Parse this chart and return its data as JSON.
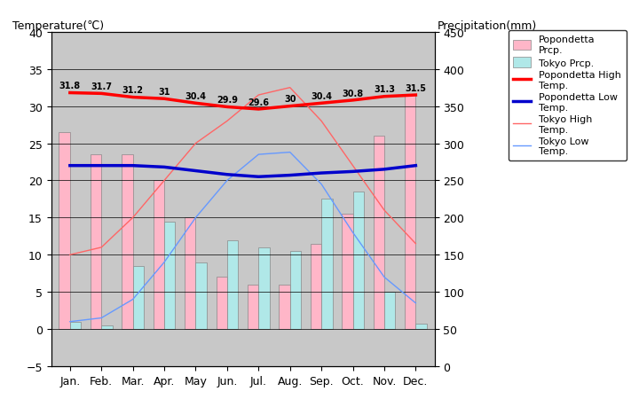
{
  "months": [
    "Jan.",
    "Feb.",
    "Mar.",
    "Apr.",
    "May",
    "Jun.",
    "Jul.",
    "Aug.",
    "Sep.",
    "Oct.",
    "Nov.",
    "Dec."
  ],
  "popondetta_precip": [
    26.5,
    23.5,
    23.5,
    20.0,
    15.0,
    7.0,
    6.0,
    6.0,
    11.5,
    15.5,
    26.0,
    31.5
  ],
  "tokyo_precip": [
    1.0,
    0.5,
    8.5,
    14.5,
    9.0,
    12.0,
    11.0,
    10.5,
    17.5,
    18.5,
    5.0,
    0.7
  ],
  "popondetta_high": [
    31.8,
    31.7,
    31.2,
    31.0,
    30.4,
    29.9,
    29.6,
    30.0,
    30.4,
    30.8,
    31.3,
    31.5
  ],
  "popondetta_low": [
    22.0,
    22.0,
    22.0,
    21.8,
    21.3,
    20.8,
    20.5,
    20.7,
    21.0,
    21.2,
    21.5,
    22.0
  ],
  "tokyo_high": [
    10.0,
    11.0,
    15.0,
    20.0,
    25.0,
    28.0,
    31.5,
    32.5,
    28.0,
    22.0,
    16.0,
    11.5
  ],
  "tokyo_low": [
    1.0,
    1.5,
    4.0,
    9.0,
    15.0,
    20.0,
    23.5,
    23.8,
    19.5,
    13.0,
    7.0,
    3.5
  ],
  "popondetta_high_labels": [
    "31.8",
    "31.7",
    "31.2",
    "31",
    "30.4",
    "29.9",
    "29.6",
    "30",
    "30.4",
    "30.8",
    "31.3",
    "31.5"
  ],
  "ylim_temp": [
    -5,
    40
  ],
  "ylim_precip": [
    0,
    450
  ],
  "bar_width": 0.35,
  "popondetta_bar_color": "#FFB6C8",
  "tokyo_bar_color": "#B0E8E8",
  "popondetta_high_color": "#FF0000",
  "popondetta_low_color": "#0000CC",
  "tokyo_high_color": "#FF6666",
  "tokyo_low_color": "#6699FF",
  "bg_color": "#C8C8C8",
  "title_left": "Temperature(℃)",
  "title_right": "Precipitation(mm)",
  "grid_color": "#000000"
}
